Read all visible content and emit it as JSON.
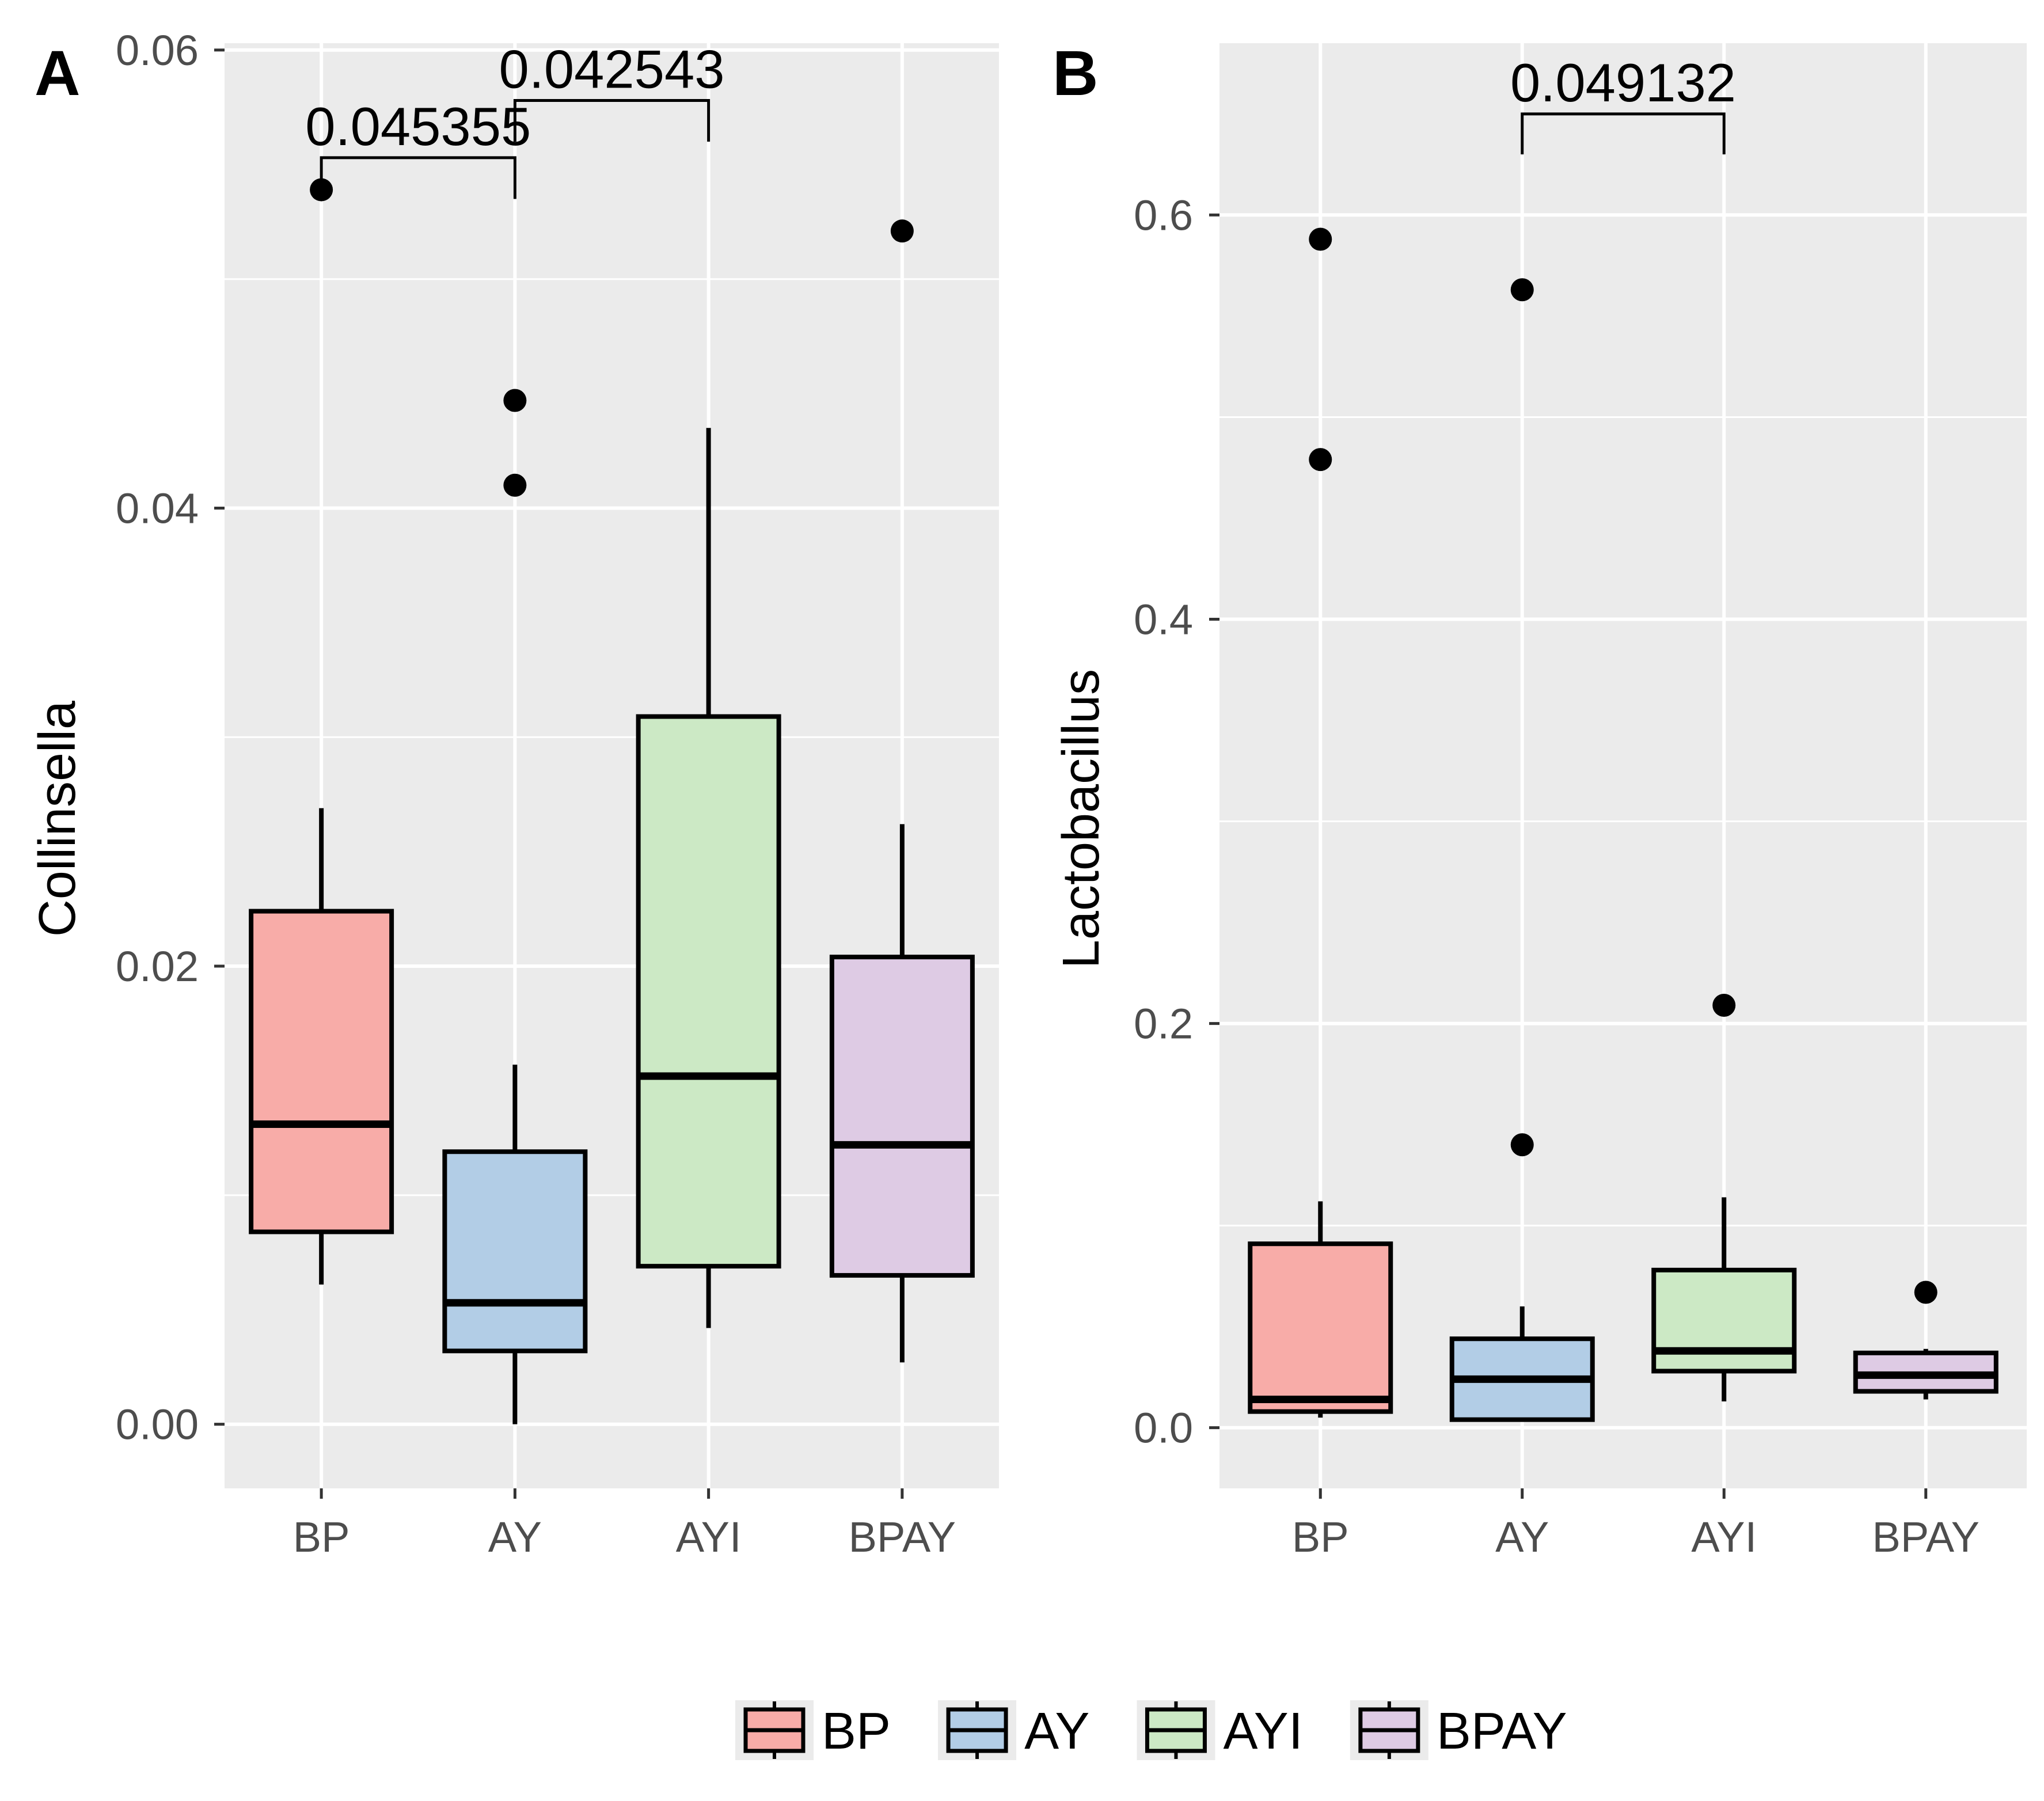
{
  "chart_data": [
    {
      "panel_label": "A",
      "type": "box",
      "ylabel": "Collinsella",
      "xlabel": "",
      "categories": [
        "BP",
        "AY",
        "AYI",
        "BPAY"
      ],
      "ylim": [
        -0.0028,
        0.0603
      ],
      "yticks": [
        0.0,
        0.02,
        0.04,
        0.06
      ],
      "ytick_labels": [
        "0.00",
        "0.02",
        "0.04",
        "0.06"
      ],
      "grid": true,
      "boxes": [
        {
          "group": "BP",
          "whisker_low": 0.0061,
          "q1": 0.0084,
          "median": 0.0131,
          "q3": 0.0224,
          "whisker_high": 0.0269,
          "outliers": [
            0.0539
          ]
        },
        {
          "group": "AY",
          "whisker_low": 0.0,
          "q1": 0.0032,
          "median": 0.0053,
          "q3": 0.0119,
          "whisker_high": 0.0157,
          "outliers": [
            0.0447,
            0.041
          ]
        },
        {
          "group": "AYI",
          "whisker_low": 0.0042,
          "q1": 0.0069,
          "median": 0.0152,
          "q3": 0.0309,
          "whisker_high": 0.0435,
          "outliers": []
        },
        {
          "group": "BPAY",
          "whisker_low": 0.0027,
          "q1": 0.0065,
          "median": 0.0122,
          "q3": 0.0204,
          "whisker_high": 0.0262,
          "outliers": [
            0.0521
          ]
        }
      ],
      "significance": [
        {
          "from": "BP",
          "to": "AY",
          "label": "0.045355",
          "y": 0.0553,
          "tip": 0.0535
        },
        {
          "from": "AY",
          "to": "AYI",
          "label": "0.042543",
          "y": 0.0578,
          "tip": 0.056
        }
      ]
    },
    {
      "panel_label": "B",
      "type": "box",
      "ylabel": "Lactobacillus",
      "xlabel": "",
      "categories": [
        "BP",
        "AY",
        "AYI",
        "BPAY"
      ],
      "ylim": [
        -0.03,
        0.685
      ],
      "yticks": [
        0.0,
        0.2,
        0.4,
        0.6
      ],
      "ytick_labels": [
        "0.0",
        "0.2",
        "0.4",
        "0.6"
      ],
      "grid": true,
      "boxes": [
        {
          "group": "BP",
          "whisker_low": 0.005,
          "q1": 0.008,
          "median": 0.014,
          "q3": 0.091,
          "whisker_high": 0.112,
          "outliers": [
            0.588,
            0.479
          ]
        },
        {
          "group": "AY",
          "whisker_low": 0.004,
          "q1": 0.004,
          "median": 0.024,
          "q3": 0.044,
          "whisker_high": 0.06,
          "outliers": [
            0.563,
            0.14
          ]
        },
        {
          "group": "AYI",
          "whisker_low": 0.013,
          "q1": 0.028,
          "median": 0.038,
          "q3": 0.078,
          "whisker_high": 0.114,
          "outliers": [
            0.209
          ]
        },
        {
          "group": "BPAY",
          "whisker_low": 0.014,
          "q1": 0.018,
          "median": 0.026,
          "q3": 0.037,
          "whisker_high": 0.039,
          "outliers": [
            0.067
          ]
        }
      ],
      "significance": [
        {
          "from": "AY",
          "to": "AYI",
          "label": "0.049132",
          "y": 0.65,
          "tip": 0.63
        }
      ]
    }
  ],
  "legend": {
    "position": "bottom",
    "items": [
      {
        "label": "BP",
        "color": "#f8aca8"
      },
      {
        "label": "AY",
        "color": "#b2cde6"
      },
      {
        "label": "AYI",
        "color": "#cce9c5"
      },
      {
        "label": "BPAY",
        "color": "#decbe4"
      }
    ]
  },
  "colors": {
    "panel_background": "#ebebeb",
    "grid": "#ffffff",
    "BP": "#f8aca8",
    "AY": "#b2cde6",
    "AYI": "#cce9c5",
    "BPAY": "#decbe4"
  }
}
